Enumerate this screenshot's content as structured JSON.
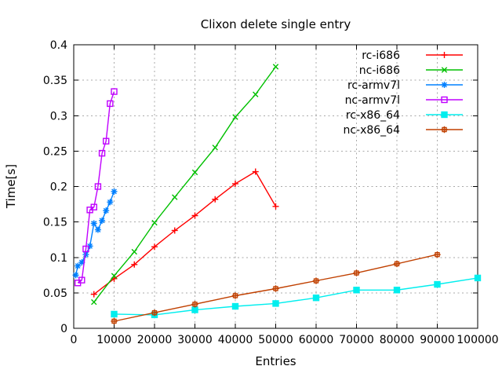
{
  "chart_data": {
    "type": "line",
    "title": "Clixon delete single entry",
    "xlabel": "Entries",
    "ylabel": "Time[s]",
    "xlim": [
      0,
      100000
    ],
    "ylim": [
      0,
      0.4
    ],
    "xticks": [
      0,
      10000,
      20000,
      30000,
      40000,
      50000,
      60000,
      70000,
      80000,
      90000,
      100000
    ],
    "yticks": [
      0,
      0.05,
      0.1,
      0.15,
      0.2,
      0.25,
      0.3,
      0.35,
      0.4
    ],
    "grid": true,
    "legend_position": "top-right-inside",
    "background_color": "#ffffff",
    "grid_color": "#aaaaaa",
    "axis_color": "#000000",
    "series": [
      {
        "name": "rc-i686",
        "color": "#ff0000",
        "marker": "plus",
        "x": [
          5000,
          10000,
          15000,
          20000,
          25000,
          30000,
          35000,
          40000,
          45000,
          50000
        ],
        "y": [
          0.048,
          0.07,
          0.09,
          0.115,
          0.138,
          0.159,
          0.182,
          0.204,
          0.221,
          0.172
        ]
      },
      {
        "name": "nc-i686",
        "color": "#00c000",
        "marker": "cross",
        "x": [
          5000,
          10000,
          15000,
          20000,
          25000,
          30000,
          35000,
          40000,
          45000,
          50000
        ],
        "y": [
          0.037,
          0.074,
          0.108,
          0.149,
          0.185,
          0.22,
          0.255,
          0.298,
          0.33,
          0.369
        ]
      },
      {
        "name": "rc-armv7l",
        "color": "#0080ff",
        "marker": "asterisk",
        "x": [
          500,
          1000,
          2000,
          3000,
          4000,
          5000,
          6000,
          7000,
          8000,
          9000,
          10000
        ],
        "y": [
          0.075,
          0.088,
          0.093,
          0.104,
          0.116,
          0.148,
          0.139,
          0.152,
          0.166,
          0.178,
          0.193
        ]
      },
      {
        "name": "nc-armv7l",
        "color": "#c000ff",
        "marker": "square-open",
        "x": [
          1000,
          2000,
          3000,
          4000,
          5000,
          6000,
          7000,
          8000,
          9000,
          10000
        ],
        "y": [
          0.064,
          0.068,
          0.112,
          0.167,
          0.171,
          0.2,
          0.247,
          0.264,
          0.317,
          0.334
        ]
      },
      {
        "name": "rc-x86_64",
        "color": "#00eeee",
        "marker": "square-filled",
        "x": [
          10000,
          20000,
          30000,
          40000,
          50000,
          60000,
          70000,
          80000,
          90000,
          100000
        ],
        "y": [
          0.02,
          0.019,
          0.026,
          0.031,
          0.035,
          0.043,
          0.054,
          0.054,
          0.062,
          0.071
        ]
      },
      {
        "name": "nc-x86_64",
        "color": "#c04000",
        "marker": "square-plus",
        "x": [
          10000,
          20000,
          30000,
          40000,
          50000,
          60000,
          70000,
          80000,
          90000
        ],
        "y": [
          0.01,
          0.022,
          0.034,
          0.046,
          0.056,
          0.067,
          0.078,
          0.091,
          0.104
        ]
      }
    ]
  }
}
